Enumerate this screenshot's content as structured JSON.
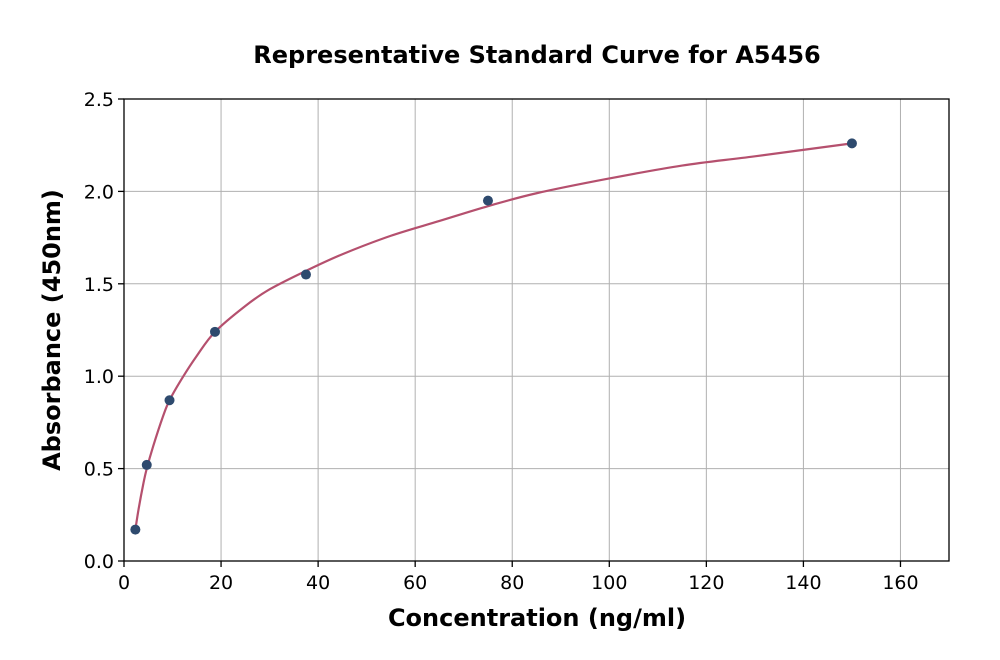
{
  "chart_data": {
    "type": "scatter",
    "title": "Representative Standard Curve for A5456",
    "xlabel": "Concentration (ng/ml)",
    "ylabel": "Absorbance (450nm)",
    "xlim": [
      0,
      170
    ],
    "ylim": [
      0,
      2.5
    ],
    "xticks": [
      0,
      20,
      40,
      60,
      80,
      100,
      120,
      140,
      160
    ],
    "yticks": [
      0.0,
      0.5,
      1.0,
      1.5,
      2.0,
      2.5
    ],
    "xtick_labels": [
      "0",
      "20",
      "40",
      "60",
      "80",
      "100",
      "120",
      "140",
      "160"
    ],
    "ytick_labels": [
      "0.0",
      "0.5",
      "1.0",
      "1.5",
      "2.0",
      "2.5"
    ],
    "grid": true,
    "series": [
      {
        "kind": "points",
        "x": [
          2.34,
          4.69,
          9.38,
          18.75,
          37.5,
          75,
          150
        ],
        "y": [
          0.17,
          0.52,
          0.87,
          1.24,
          1.55,
          1.95,
          2.26
        ],
        "color": "#2e4a6e"
      },
      {
        "kind": "fitted-curve",
        "x": [
          2.34,
          3,
          4,
          4.69,
          6,
          8,
          9.38,
          12,
          15,
          18.75,
          25,
          30,
          37.5,
          45,
          55,
          65,
          75,
          85,
          100,
          115,
          130,
          150
        ],
        "y": [
          0.17,
          0.28,
          0.42,
          0.5,
          0.62,
          0.78,
          0.87,
          0.99,
          1.11,
          1.24,
          1.38,
          1.47,
          1.57,
          1.66,
          1.76,
          1.84,
          1.92,
          1.99,
          2.07,
          2.14,
          2.19,
          2.26
        ],
        "color": "#b5506e"
      }
    ]
  }
}
